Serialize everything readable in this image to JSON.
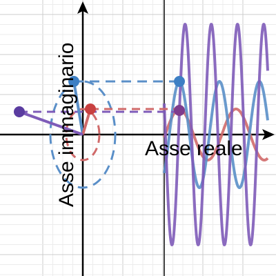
{
  "axes": {
    "x_label": "Asse reale",
    "y_label": "Asse immaginario"
  }
}
